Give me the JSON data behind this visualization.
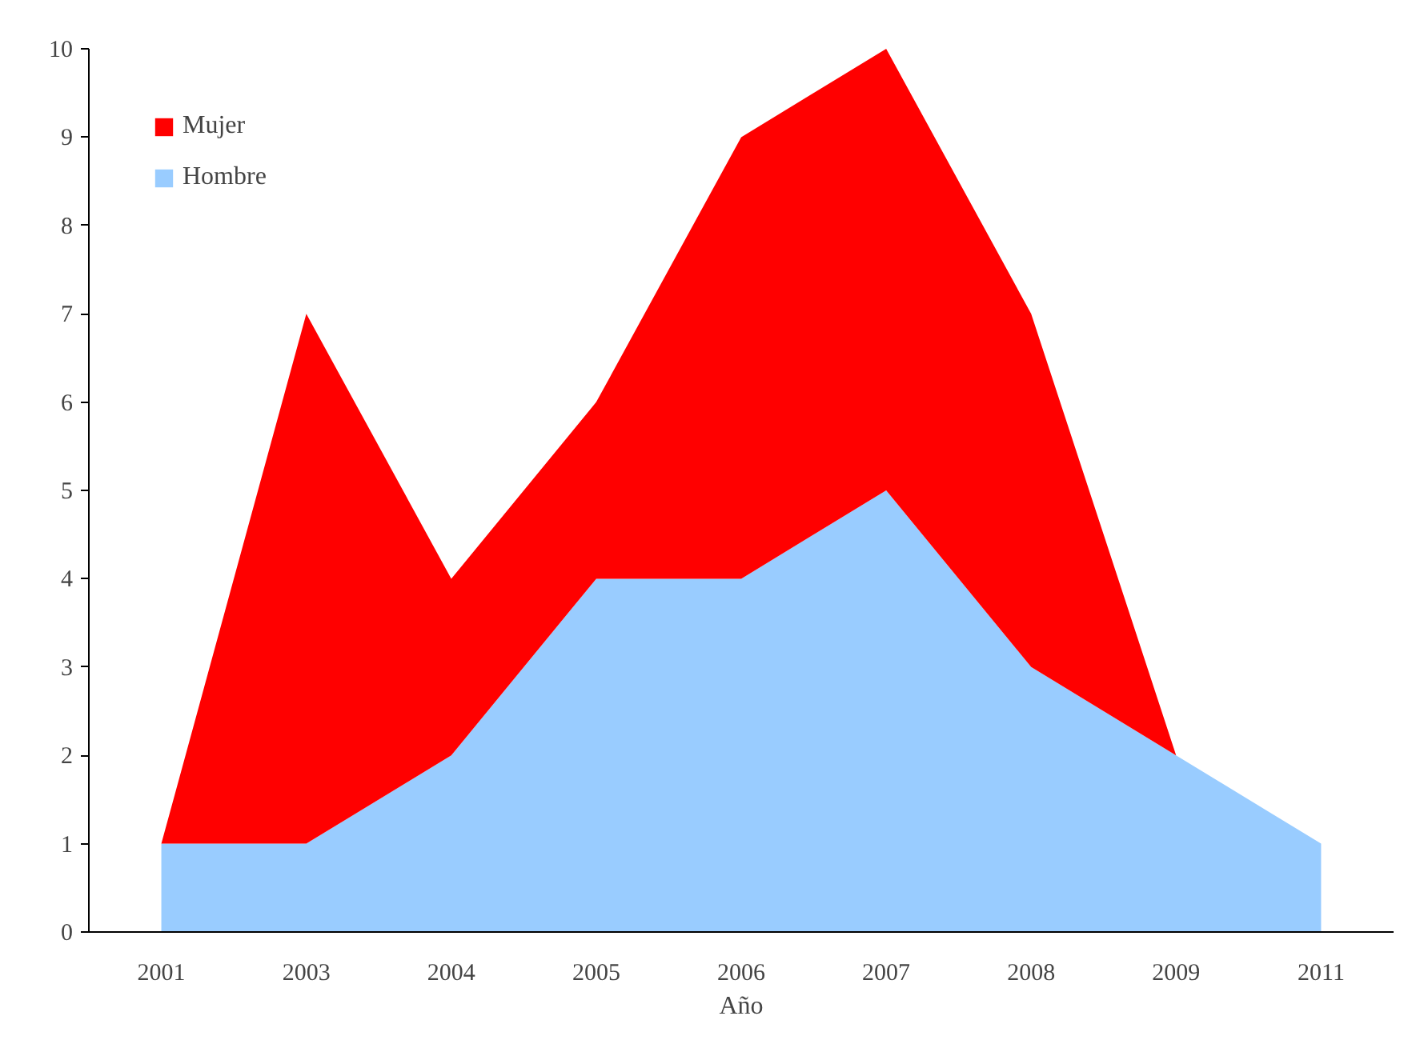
{
  "chart_data": {
    "type": "area",
    "stacked": true,
    "xlabel": "Año",
    "categories": [
      "2001",
      "2003",
      "2004",
      "2005",
      "2006",
      "2007",
      "2008",
      "2009",
      "2011"
    ],
    "series": [
      {
        "name": "Hombre",
        "color": "#99ccff",
        "values": [
          1,
          1,
          2,
          4,
          4,
          5,
          3,
          2,
          1
        ]
      },
      {
        "name": "Mujer",
        "color": "#ff0000",
        "values": [
          0,
          6,
          2,
          2,
          5,
          5,
          4,
          0,
          0
        ]
      }
    ],
    "ylim": [
      0,
      10
    ],
    "yticks": [
      0,
      1,
      2,
      3,
      4,
      5,
      6,
      7,
      8,
      9,
      10
    ],
    "grid": false,
    "legend": "top left"
  }
}
